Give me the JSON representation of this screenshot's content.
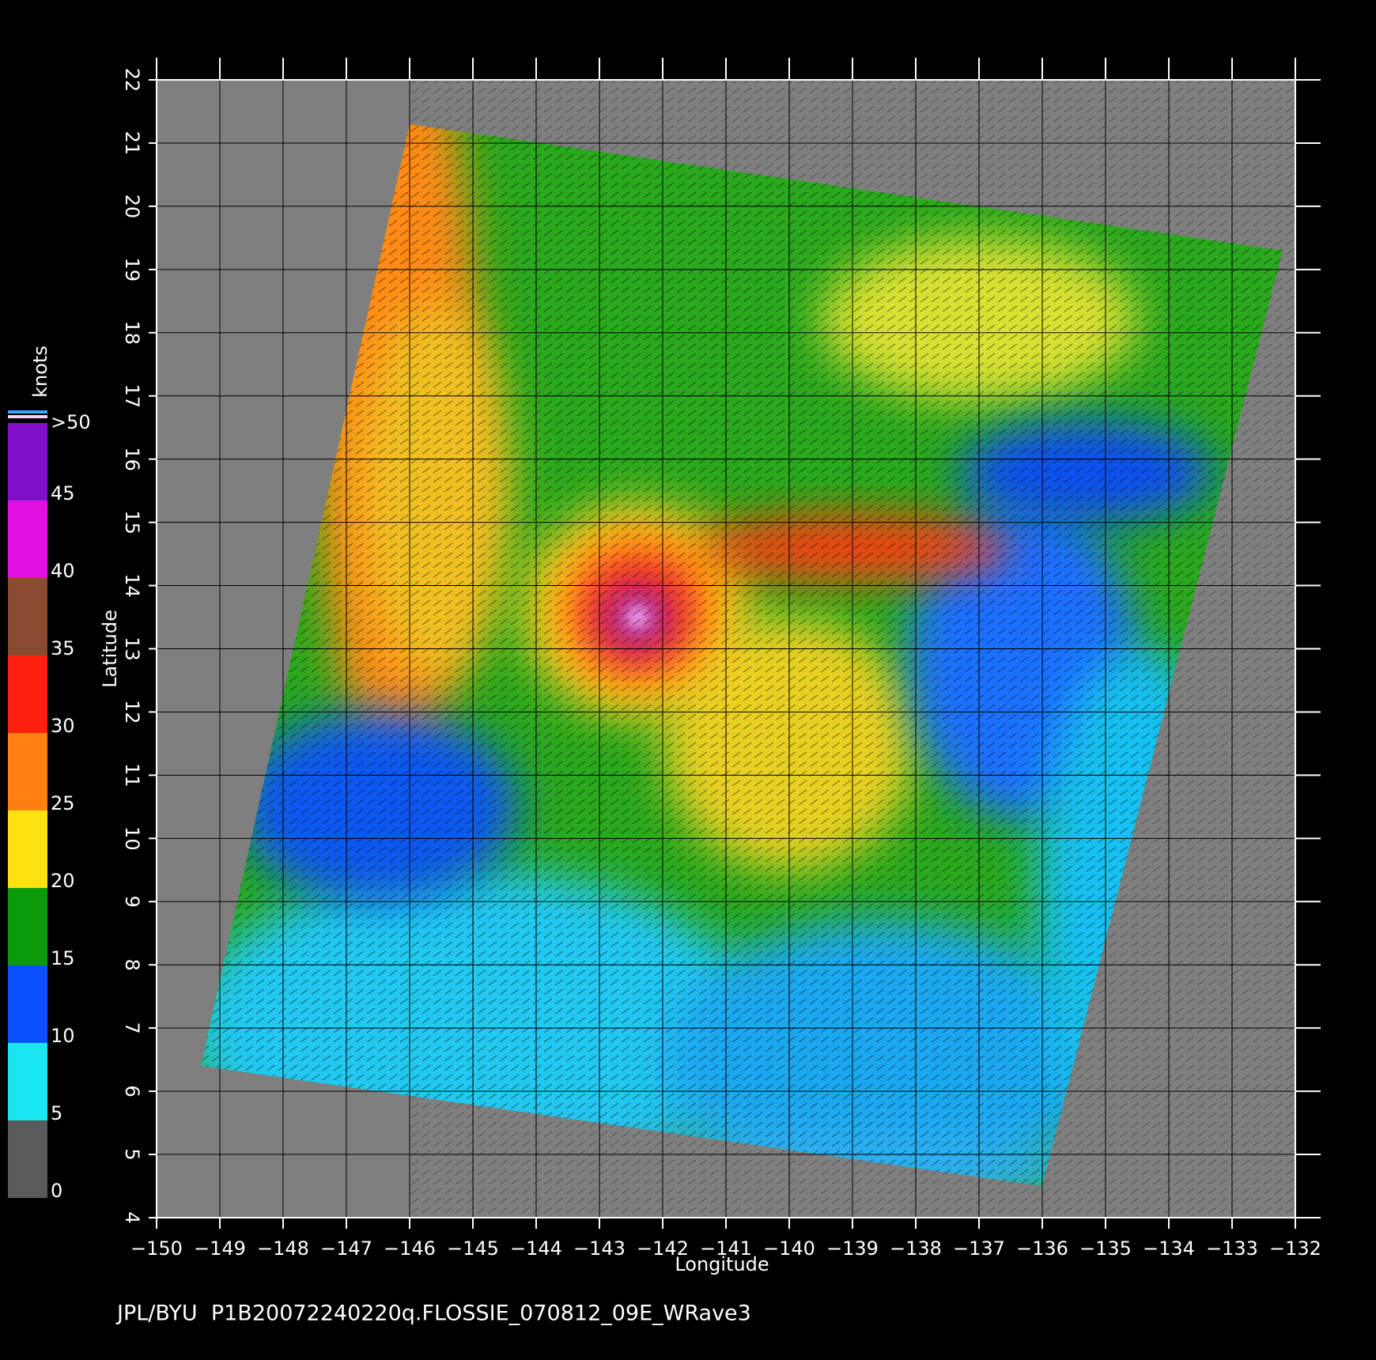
{
  "plot": {
    "xlabel": "Longitude",
    "ylabel": "Latitude",
    "xlim": [
      -150,
      -132
    ],
    "ylim": [
      4,
      22
    ],
    "xticks": [
      {
        "value": -150,
        "label": "−150"
      },
      {
        "value": -149,
        "label": "−149"
      },
      {
        "value": -148,
        "label": "−148"
      },
      {
        "value": -147,
        "label": "−147"
      },
      {
        "value": -146,
        "label": "−146"
      },
      {
        "value": -145,
        "label": "−145"
      },
      {
        "value": -144,
        "label": "−144"
      },
      {
        "value": -143,
        "label": "−143"
      },
      {
        "value": -142,
        "label": "−142"
      },
      {
        "value": -141,
        "label": "−141"
      },
      {
        "value": -140,
        "label": "−140"
      },
      {
        "value": -139,
        "label": "−139"
      },
      {
        "value": -138,
        "label": "−138"
      },
      {
        "value": -137,
        "label": "−137"
      },
      {
        "value": -136,
        "label": "−136"
      },
      {
        "value": -135,
        "label": "−135"
      },
      {
        "value": -134,
        "label": "−134"
      },
      {
        "value": -133,
        "label": "−133"
      },
      {
        "value": -132,
        "label": "−132"
      }
    ],
    "yticks": [
      4,
      5,
      6,
      7,
      8,
      9,
      10,
      11,
      12,
      13,
      14,
      15,
      16,
      17,
      18,
      19,
      20,
      21,
      22
    ]
  },
  "colorbar": {
    "title": "knots",
    "lim": [
      0,
      50
    ],
    "ticks": [
      0,
      5,
      10,
      15,
      20,
      25,
      30,
      35,
      40,
      45,
      {
        "value": 50,
        "label": ">50"
      }
    ],
    "colors": [
      "#5a5a5a",
      "#19e6f0",
      "#0a50ff",
      "#0a9a0a",
      "#ffe010",
      "#ff8010",
      "#ff2010",
      "#8a4a30",
      "#e010e0",
      "#8010c8"
    ]
  },
  "footer": "JPL/BYU  P1B20072240220q.FLOSSIE_070812_09E_WRave3"
}
